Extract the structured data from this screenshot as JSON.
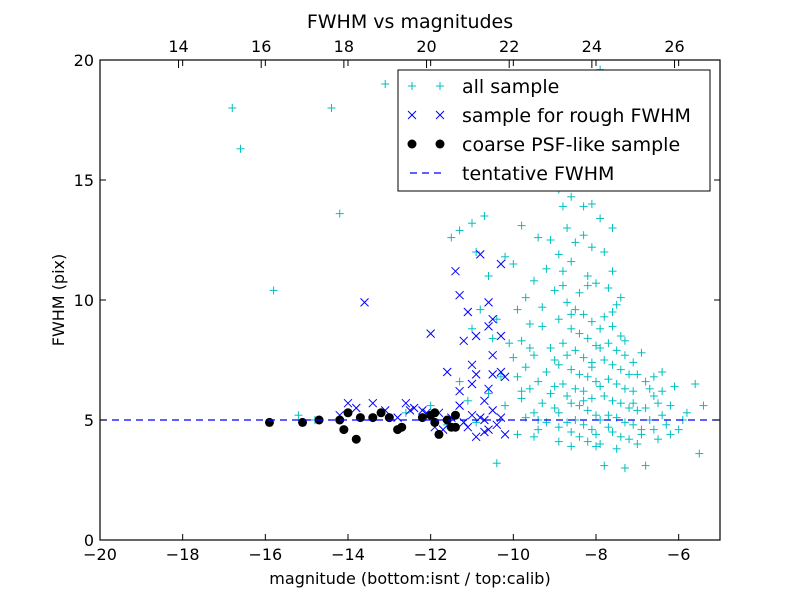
{
  "chart_data": {
    "type": "scatter",
    "title": "FWHM vs magnitudes",
    "xlabel": "magnitude (bottom:isnt / top:calib)",
    "ylabel": "FWHM (pix)",
    "xlim": [
      -20,
      -5
    ],
    "ylim": [
      0,
      20
    ],
    "top_xlim": [
      12.1,
      27.1
    ],
    "x_ticks": [
      "−20",
      "−18",
      "−16",
      "−14",
      "−12",
      "−10",
      "−8",
      "−6"
    ],
    "x_tick_values": [
      -20,
      -18,
      -16,
      -14,
      -12,
      -10,
      -8,
      -6
    ],
    "y_ticks": [
      "0",
      "5",
      "10",
      "15",
      "20"
    ],
    "y_tick_values": [
      0,
      5,
      10,
      15,
      20
    ],
    "top_ticks": [
      "14",
      "16",
      "18",
      "20",
      "22",
      "24",
      "26"
    ],
    "top_tick_values": [
      14,
      16,
      18,
      20,
      22,
      24,
      26
    ],
    "grid": false,
    "legend_position": "top-right",
    "colors": {
      "all": "#00bfbf",
      "rough": "#0000ff",
      "psf": "#000000",
      "fwhm": "#0000ff"
    },
    "series": [
      {
        "name": "all sample",
        "marker": "plus",
        "points": [
          [
            -16.8,
            18.0
          ],
          [
            -16.6,
            16.3
          ],
          [
            -14.4,
            18.0
          ],
          [
            -13.1,
            19.0
          ],
          [
            -14.2,
            13.6
          ],
          [
            -15.8,
            10.4
          ],
          [
            -15.2,
            5.2
          ],
          [
            -14.8,
            5.0
          ],
          [
            -13.4,
            5.1
          ],
          [
            -12.6,
            5.3
          ],
          [
            -11.5,
            12.6
          ],
          [
            -11.3,
            12.9
          ],
          [
            -11.0,
            13.2
          ],
          [
            -10.7,
            13.5
          ],
          [
            -10.9,
            12.0
          ],
          [
            -10.6,
            11.0
          ],
          [
            -10.2,
            11.8
          ],
          [
            -10.0,
            11.5
          ],
          [
            -10.4,
            9.2
          ],
          [
            -10.1,
            8.2
          ],
          [
            -10.3,
            6.8
          ],
          [
            -10.6,
            6.1
          ],
          [
            -10.2,
            5.6
          ],
          [
            -10.4,
            3.2
          ],
          [
            -9.8,
            13.1
          ],
          [
            -9.4,
            12.6
          ],
          [
            -9.2,
            11.3
          ],
          [
            -9.5,
            10.8
          ],
          [
            -9.7,
            10.1
          ],
          [
            -9.9,
            9.6
          ],
          [
            -9.6,
            9.0
          ],
          [
            -9.3,
            8.9
          ],
          [
            -9.8,
            8.3
          ],
          [
            -9.1,
            8.0
          ],
          [
            -9.5,
            7.7
          ],
          [
            -9.0,
            7.5
          ],
          [
            -9.7,
            7.2
          ],
          [
            -9.2,
            7.0
          ],
          [
            -9.9,
            6.8
          ],
          [
            -9.4,
            6.6
          ],
          [
            -9.6,
            6.3
          ],
          [
            -9.1,
            6.1
          ],
          [
            -9.8,
            5.9
          ],
          [
            -9.3,
            5.7
          ],
          [
            -9.0,
            5.5
          ],
          [
            -9.5,
            5.3
          ],
          [
            -9.7,
            5.1
          ],
          [
            -9.2,
            4.9
          ],
          [
            -8.9,
            4.7
          ],
          [
            -9.4,
            4.6
          ],
          [
            -8.8,
            13.9
          ],
          [
            -8.6,
            14.3
          ],
          [
            -8.4,
            14.8
          ],
          [
            -8.7,
            13.0
          ],
          [
            -8.5,
            12.4
          ],
          [
            -8.3,
            12.7
          ],
          [
            -8.1,
            12.2
          ],
          [
            -8.9,
            11.9
          ],
          [
            -8.6,
            11.6
          ],
          [
            -8.2,
            11.0
          ],
          [
            -8.8,
            10.6
          ],
          [
            -8.4,
            10.3
          ],
          [
            -8.0,
            10.7
          ],
          [
            -8.7,
            9.9
          ],
          [
            -8.5,
            9.6
          ],
          [
            -8.3,
            9.4
          ],
          [
            -8.9,
            9.2
          ],
          [
            -8.1,
            9.1
          ],
          [
            -8.6,
            8.8
          ],
          [
            -8.4,
            8.6
          ],
          [
            -8.2,
            8.4
          ],
          [
            -8.8,
            8.2
          ],
          [
            -8.0,
            8.1
          ],
          [
            -8.5,
            7.9
          ],
          [
            -8.7,
            7.7
          ],
          [
            -8.3,
            7.6
          ],
          [
            -8.1,
            7.4
          ],
          [
            -8.9,
            7.3
          ],
          [
            -8.6,
            7.1
          ],
          [
            -8.4,
            6.9
          ],
          [
            -8.2,
            6.8
          ],
          [
            -8.0,
            6.6
          ],
          [
            -8.8,
            6.5
          ],
          [
            -8.5,
            6.3
          ],
          [
            -8.3,
            6.2
          ],
          [
            -8.7,
            6.0
          ],
          [
            -8.1,
            5.9
          ],
          [
            -8.6,
            5.7
          ],
          [
            -8.4,
            5.6
          ],
          [
            -8.2,
            5.4
          ],
          [
            -8.9,
            5.3
          ],
          [
            -8.0,
            5.2
          ],
          [
            -8.5,
            5.0
          ],
          [
            -8.7,
            4.9
          ],
          [
            -8.3,
            4.8
          ],
          [
            -8.1,
            4.6
          ],
          [
            -8.6,
            4.5
          ],
          [
            -8.4,
            4.3
          ],
          [
            -8.2,
            4.1
          ],
          [
            -7.9,
            4.0
          ],
          [
            -8.0,
            3.9
          ],
          [
            -7.9,
            13.4
          ],
          [
            -7.8,
            12.0
          ],
          [
            -7.6,
            11.2
          ],
          [
            -7.7,
            10.5
          ],
          [
            -7.5,
            9.8
          ],
          [
            -7.8,
            9.3
          ],
          [
            -7.6,
            8.9
          ],
          [
            -7.4,
            8.5
          ],
          [
            -7.7,
            8.2
          ],
          [
            -7.5,
            7.9
          ],
          [
            -7.3,
            7.7
          ],
          [
            -7.8,
            7.5
          ],
          [
            -7.6,
            7.3
          ],
          [
            -7.4,
            7.1
          ],
          [
            -7.2,
            6.9
          ],
          [
            -7.7,
            6.7
          ],
          [
            -7.5,
            6.5
          ],
          [
            -7.3,
            6.3
          ],
          [
            -7.1,
            6.2
          ],
          [
            -7.8,
            6.0
          ],
          [
            -7.6,
            5.8
          ],
          [
            -7.4,
            5.7
          ],
          [
            -7.2,
            5.5
          ],
          [
            -7.0,
            5.4
          ],
          [
            -7.7,
            5.2
          ],
          [
            -7.5,
            5.1
          ],
          [
            -7.3,
            4.9
          ],
          [
            -7.1,
            4.8
          ],
          [
            -6.9,
            4.6
          ],
          [
            -7.6,
            4.5
          ],
          [
            -7.4,
            4.3
          ],
          [
            -7.2,
            4.2
          ],
          [
            -7.0,
            4.0
          ],
          [
            -7.5,
            3.8
          ],
          [
            -7.8,
            3.1
          ],
          [
            -7.3,
            3.0
          ],
          [
            -6.8,
            6.6
          ],
          [
            -6.7,
            6.3
          ],
          [
            -6.6,
            6.0
          ],
          [
            -6.5,
            5.7
          ],
          [
            -6.8,
            5.5
          ],
          [
            -6.4,
            5.2
          ],
          [
            -6.7,
            5.0
          ],
          [
            -6.3,
            4.8
          ],
          [
            -6.6,
            4.6
          ],
          [
            -6.2,
            4.4
          ],
          [
            -6.5,
            4.2
          ],
          [
            -6.9,
            4.4
          ],
          [
            -6.1,
            6.4
          ],
          [
            -5.6,
            6.5
          ],
          [
            -5.4,
            5.6
          ],
          [
            -5.8,
            5.3
          ],
          [
            -5.5,
            3.6
          ],
          [
            -6.8,
            3.1
          ],
          [
            -6.0,
            4.6
          ],
          [
            -5.9,
            5.0
          ],
          [
            -6.2,
            5.6
          ],
          [
            -6.4,
            6.2
          ],
          [
            -9.1,
            12.5
          ],
          [
            -8.8,
            11.2
          ],
          [
            -8.2,
            10.6
          ],
          [
            -7.9,
            8.8
          ],
          [
            -7.6,
            9.5
          ],
          [
            -8.6,
            9.4
          ],
          [
            -9.3,
            9.7
          ],
          [
            -9.0,
            10.4
          ],
          [
            -7.4,
            10.1
          ],
          [
            -7.9,
            8.0
          ],
          [
            -8.1,
            7.2
          ],
          [
            -7.9,
            6.4
          ],
          [
            -8.3,
            5.8
          ],
          [
            -7.9,
            5.0
          ],
          [
            -8.0,
            4.4
          ],
          [
            -7.7,
            4.7
          ],
          [
            -7.1,
            7.4
          ],
          [
            -6.9,
            7.8
          ],
          [
            -7.0,
            6.9
          ],
          [
            -7.3,
            8.3
          ],
          [
            -7.1,
            5.7
          ],
          [
            -6.6,
            6.8
          ],
          [
            -6.4,
            7.0
          ],
          [
            -9.6,
            8.0
          ],
          [
            -9.8,
            6.2
          ],
          [
            -9.4,
            5.0
          ],
          [
            -9.0,
            6.4
          ],
          [
            -10.0,
            7.6
          ],
          [
            -10.5,
            8.4
          ],
          [
            -10.8,
            9.6
          ],
          [
            -11.0,
            8.8
          ],
          [
            -11.1,
            5.8
          ],
          [
            -11.3,
            6.6
          ],
          [
            -10.9,
            4.9
          ],
          [
            -11.6,
            4.8
          ],
          [
            -12.0,
            5.6
          ],
          [
            -9.9,
            4.4
          ],
          [
            -9.5,
            4.3
          ],
          [
            -8.6,
            3.9
          ],
          [
            -8.9,
            4.1
          ],
          [
            -7.6,
            13.0
          ],
          [
            -8.3,
            13.9
          ],
          [
            -8.9,
            14.6
          ],
          [
            -8.1,
            14.0
          ],
          [
            -7.9,
            19.6
          ]
        ]
      },
      {
        "name": "sample for rough FWHM",
        "marker": "x",
        "points": [
          [
            -11.4,
            11.2
          ],
          [
            -10.8,
            11.9
          ],
          [
            -10.3,
            11.5
          ],
          [
            -11.3,
            10.2
          ],
          [
            -11.1,
            9.5
          ],
          [
            -10.6,
            9.9
          ],
          [
            -10.5,
            9.2
          ],
          [
            -10.3,
            8.5
          ],
          [
            -10.6,
            8.9
          ],
          [
            -10.9,
            8.5
          ],
          [
            -11.2,
            8.3
          ],
          [
            -11.0,
            7.3
          ],
          [
            -10.9,
            6.9
          ],
          [
            -10.5,
            6.9
          ],
          [
            -10.5,
            7.7
          ],
          [
            -10.3,
            7.0
          ],
          [
            -10.6,
            6.3
          ],
          [
            -10.2,
            6.8
          ],
          [
            -12.0,
            8.6
          ],
          [
            -13.6,
            9.9
          ],
          [
            -11.6,
            7.0
          ],
          [
            -11.3,
            6.2
          ],
          [
            -11.0,
            6.5
          ],
          [
            -10.7,
            5.8
          ],
          [
            -11.3,
            5.6
          ],
          [
            -11.0,
            5.2
          ],
          [
            -10.7,
            5.0
          ],
          [
            -10.4,
            4.8
          ],
          [
            -10.7,
            4.5
          ],
          [
            -10.9,
            4.3
          ],
          [
            -11.1,
            4.7
          ],
          [
            -10.2,
            4.4
          ],
          [
            -10.5,
            5.4
          ],
          [
            -11.2,
            4.9
          ],
          [
            -11.5,
            5.1
          ],
          [
            -10.8,
            5.1
          ],
          [
            -12.6,
            5.7
          ],
          [
            -12.4,
            5.5
          ],
          [
            -12.2,
            5.4
          ],
          [
            -13.4,
            5.7
          ],
          [
            -13.1,
            5.4
          ],
          [
            -13.8,
            5.5
          ],
          [
            -14.0,
            5.7
          ],
          [
            -14.2,
            5.2
          ],
          [
            -12.8,
            5.1
          ],
          [
            -12.5,
            5.4
          ],
          [
            -12.1,
            5.3
          ],
          [
            -11.8,
            5.3
          ],
          [
            -11.7,
            4.6
          ],
          [
            -11.9,
            4.7
          ],
          [
            -10.6,
            4.6
          ],
          [
            -10.3,
            5.1
          ]
        ]
      },
      {
        "name": "coarse PSF-like sample",
        "marker": "dot",
        "points": [
          [
            -15.9,
            4.9
          ],
          [
            -15.1,
            4.9
          ],
          [
            -14.7,
            5.0
          ],
          [
            -14.2,
            5.0
          ],
          [
            -14.1,
            4.6
          ],
          [
            -14.0,
            5.3
          ],
          [
            -13.8,
            4.2
          ],
          [
            -13.7,
            5.1
          ],
          [
            -13.4,
            5.1
          ],
          [
            -13.2,
            5.3
          ],
          [
            -13.0,
            5.1
          ],
          [
            -12.8,
            4.6
          ],
          [
            -12.7,
            4.7
          ],
          [
            -12.2,
            5.1
          ],
          [
            -12.0,
            5.2
          ],
          [
            -11.9,
            5.3
          ],
          [
            -11.9,
            4.9
          ],
          [
            -11.8,
            4.4
          ],
          [
            -11.6,
            5.0
          ],
          [
            -11.5,
            4.7
          ],
          [
            -11.4,
            4.7
          ],
          [
            -11.4,
            5.2
          ]
        ]
      }
    ],
    "reference_line": {
      "name": "tentative FWHM",
      "y": 5.0,
      "style": "dashed"
    }
  }
}
